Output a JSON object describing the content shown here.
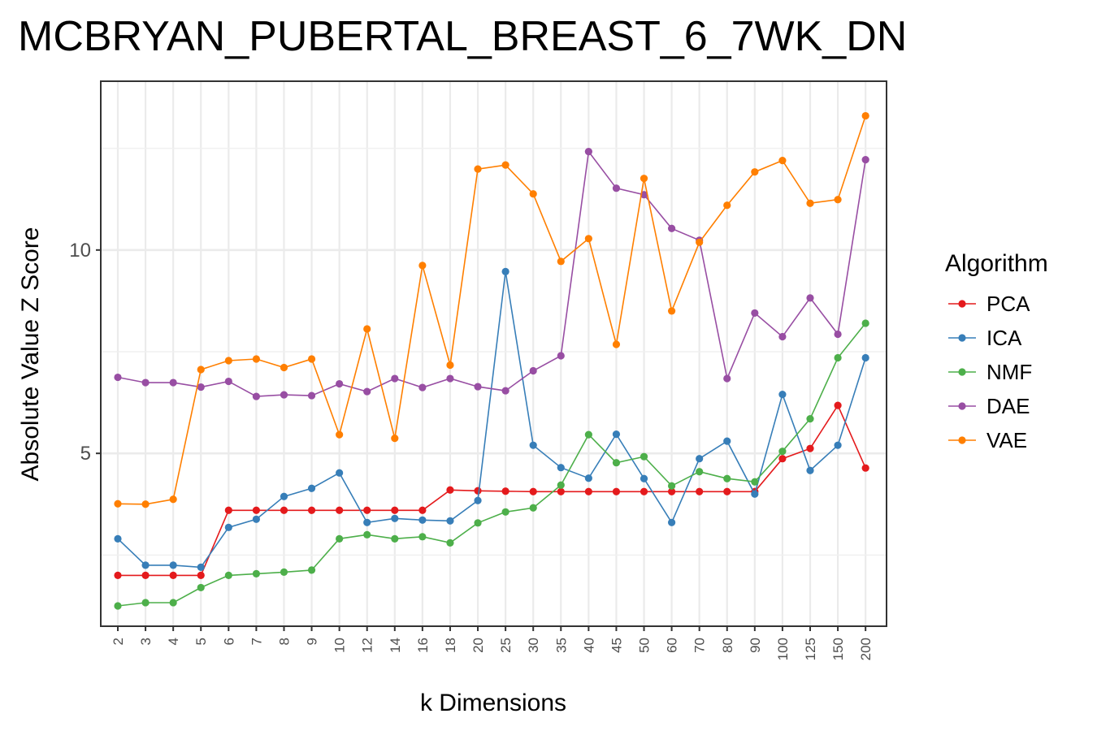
{
  "chart_data": {
    "type": "line",
    "title": "MCBRYAN_PUBERTAL_BREAST_6_7WK_DN",
    "xlabel": "k Dimensions",
    "ylabel": "Absolute Value Z Score",
    "categories": [
      "2",
      "3",
      "4",
      "5",
      "6",
      "7",
      "8",
      "9",
      "10",
      "12",
      "14",
      "16",
      "18",
      "20",
      "25",
      "30",
      "35",
      "40",
      "45",
      "50",
      "60",
      "70",
      "80",
      "90",
      "100",
      "125",
      "150",
      "200"
    ],
    "ylim": [
      0.75,
      14.15
    ],
    "yticks": [
      5,
      10
    ],
    "legend_title": "Algorithm",
    "legend_position": "right",
    "series": [
      {
        "name": "PCA",
        "color": "#e41a1c",
        "values": [
          2.0,
          2.0,
          2.0,
          2.0,
          3.6,
          3.6,
          3.6,
          3.6,
          3.6,
          3.6,
          3.6,
          3.6,
          4.1,
          4.08,
          4.07,
          4.06,
          4.06,
          4.06,
          4.06,
          4.06,
          4.06,
          4.06,
          4.06,
          4.06,
          4.87,
          5.12,
          6.18,
          4.64
        ]
      },
      {
        "name": "ICA",
        "color": "#377eb8",
        "values": [
          2.9,
          2.25,
          2.25,
          2.2,
          3.18,
          3.38,
          3.94,
          4.14,
          4.52,
          3.3,
          3.4,
          3.36,
          3.34,
          3.84,
          9.47,
          5.2,
          4.65,
          4.39,
          5.47,
          4.38,
          3.3,
          4.87,
          5.3,
          4.0,
          6.45,
          4.58,
          5.2,
          7.35
        ]
      },
      {
        "name": "NMF",
        "color": "#4daf4a",
        "values": [
          1.25,
          1.33,
          1.33,
          1.7,
          2.0,
          2.04,
          2.08,
          2.13,
          2.9,
          3.0,
          2.9,
          2.95,
          2.8,
          3.29,
          3.56,
          3.66,
          4.22,
          5.46,
          4.77,
          4.92,
          4.2,
          4.55,
          4.38,
          4.3,
          5.05,
          5.85,
          7.35,
          8.2
        ]
      },
      {
        "name": "DAE",
        "color": "#984ea3",
        "values": [
          6.87,
          6.74,
          6.74,
          6.63,
          6.77,
          6.4,
          6.44,
          6.42,
          6.71,
          6.52,
          6.84,
          6.62,
          6.84,
          6.64,
          6.54,
          7.03,
          7.4,
          12.42,
          11.52,
          11.36,
          10.53,
          10.24,
          6.84,
          8.45,
          7.87,
          8.82,
          7.93,
          12.22
        ]
      },
      {
        "name": "VAE",
        "color": "#ff7f00",
        "values": [
          3.76,
          3.75,
          3.87,
          7.06,
          7.28,
          7.32,
          7.11,
          7.32,
          5.46,
          8.06,
          5.37,
          9.62,
          7.17,
          11.99,
          12.09,
          11.38,
          9.72,
          10.28,
          7.68,
          11.76,
          8.5,
          10.19,
          11.1,
          11.92,
          12.2,
          11.15,
          11.24,
          13.3
        ]
      }
    ]
  }
}
